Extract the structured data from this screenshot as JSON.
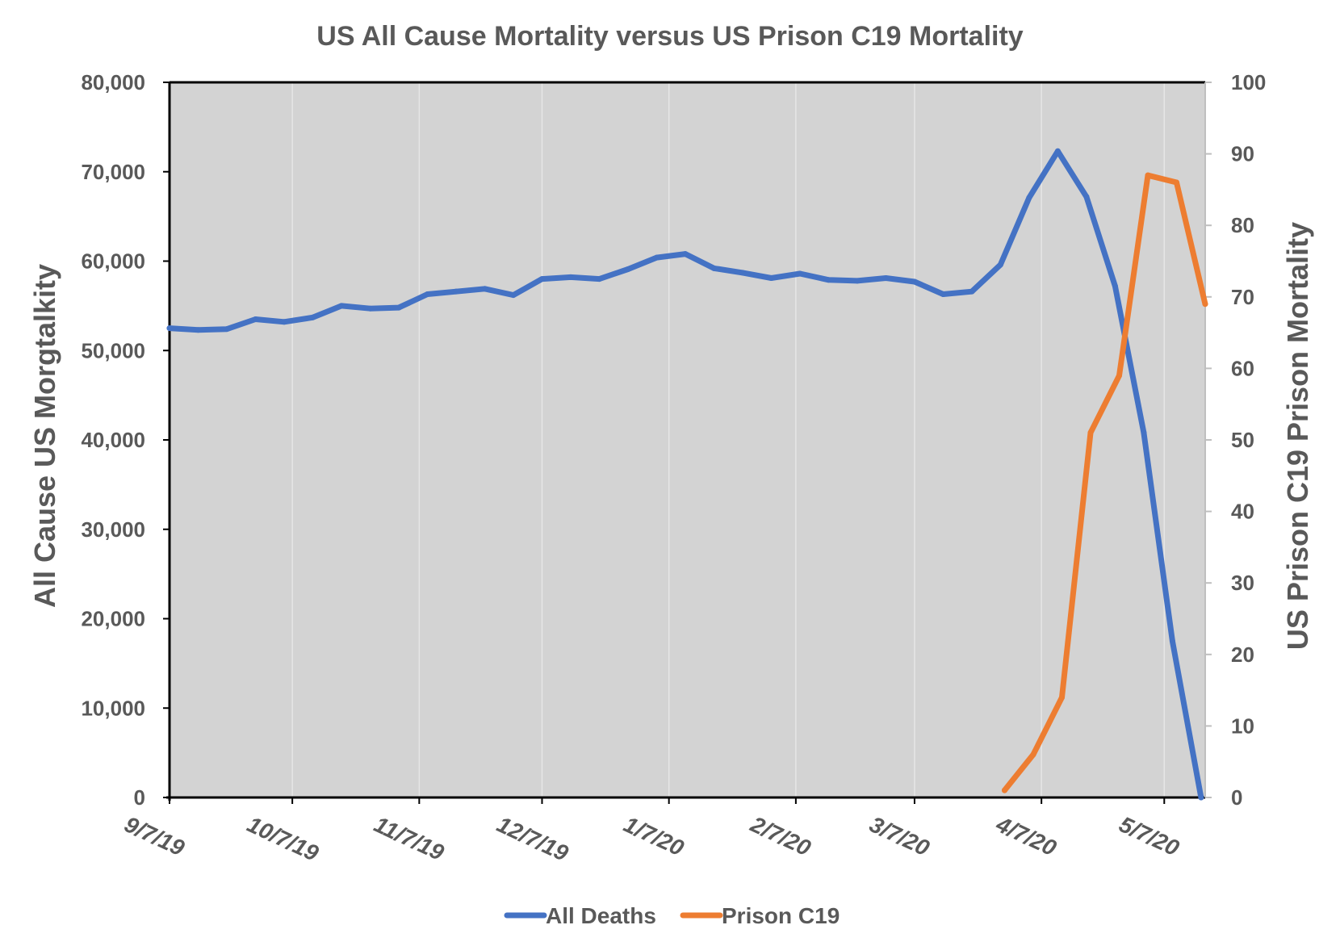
{
  "chart_data": {
    "type": "line",
    "title": "US All Cause Mortality versus US Prison C19 Mortality",
    "ylabel_left": "All  Cause US Morgtalkity",
    "ylabel_right": "US  Prison C19 Prison Mortality",
    "xlabel": "",
    "x_tick_labels": [
      "9/7/19",
      "10/7/19",
      "11/7/19",
      "12/7/19",
      "1/7/20",
      "2/7/20",
      "3/7/20",
      "4/7/20",
      "5/7/20"
    ],
    "x_range": [
      "2019-09-07",
      "2020-05-17"
    ],
    "y_left": {
      "range": [
        0,
        80000
      ],
      "ticks": [
        "0",
        "10,000",
        "20,000",
        "30,000",
        "40,000",
        "50,000",
        "60,000",
        "70,000",
        "80,000"
      ]
    },
    "y_right": {
      "range": [
        0,
        100
      ],
      "ticks": [
        "0",
        "10",
        "20",
        "30",
        "40",
        "50",
        "60",
        "70",
        "80",
        "90",
        "100"
      ]
    },
    "grid": "vertical",
    "plot_background": "#d3d3d3",
    "legend_position": "bottom",
    "series": [
      {
        "name": "All Deaths",
        "axis": "left",
        "color": "#4472c4",
        "points": [
          [
            "2019-09-07",
            52500
          ],
          [
            "2019-09-14",
            52300
          ],
          [
            "2019-09-21",
            52400
          ],
          [
            "2019-09-28",
            53500
          ],
          [
            "2019-10-05",
            53200
          ],
          [
            "2019-10-12",
            53700
          ],
          [
            "2019-10-19",
            55000
          ],
          [
            "2019-10-26",
            54700
          ],
          [
            "2019-11-02",
            54800
          ],
          [
            "2019-11-09",
            56300
          ],
          [
            "2019-11-16",
            56600
          ],
          [
            "2019-11-23",
            56900
          ],
          [
            "2019-11-30",
            56200
          ],
          [
            "2019-12-07",
            58000
          ],
          [
            "2019-12-14",
            58200
          ],
          [
            "2019-12-21",
            58000
          ],
          [
            "2019-12-28",
            59100
          ],
          [
            "2020-01-04",
            60400
          ],
          [
            "2020-01-11",
            60800
          ],
          [
            "2020-01-18",
            59200
          ],
          [
            "2020-01-25",
            58700
          ],
          [
            "2020-02-01",
            58100
          ],
          [
            "2020-02-08",
            58600
          ],
          [
            "2020-02-15",
            57900
          ],
          [
            "2020-02-22",
            57800
          ],
          [
            "2020-02-29",
            58100
          ],
          [
            "2020-03-07",
            57700
          ],
          [
            "2020-03-14",
            56300
          ],
          [
            "2020-03-21",
            56600
          ],
          [
            "2020-03-28",
            59600
          ],
          [
            "2020-04-04",
            67100
          ],
          [
            "2020-04-11",
            72300
          ],
          [
            "2020-04-18",
            67200
          ],
          [
            "2020-04-25",
            57200
          ],
          [
            "2020-05-02",
            40800
          ],
          [
            "2020-05-09",
            17500
          ],
          [
            "2020-05-16",
            0
          ]
        ]
      },
      {
        "name": "Prison C19",
        "axis": "right",
        "color": "#ed7d31",
        "points": [
          [
            "2020-03-29",
            1
          ],
          [
            "2020-04-05",
            6
          ],
          [
            "2020-04-12",
            14
          ],
          [
            "2020-04-19",
            51
          ],
          [
            "2020-04-26",
            59
          ],
          [
            "2020-05-03",
            87
          ],
          [
            "2020-05-10",
            86
          ],
          [
            "2020-05-17",
            69
          ]
        ]
      }
    ]
  }
}
